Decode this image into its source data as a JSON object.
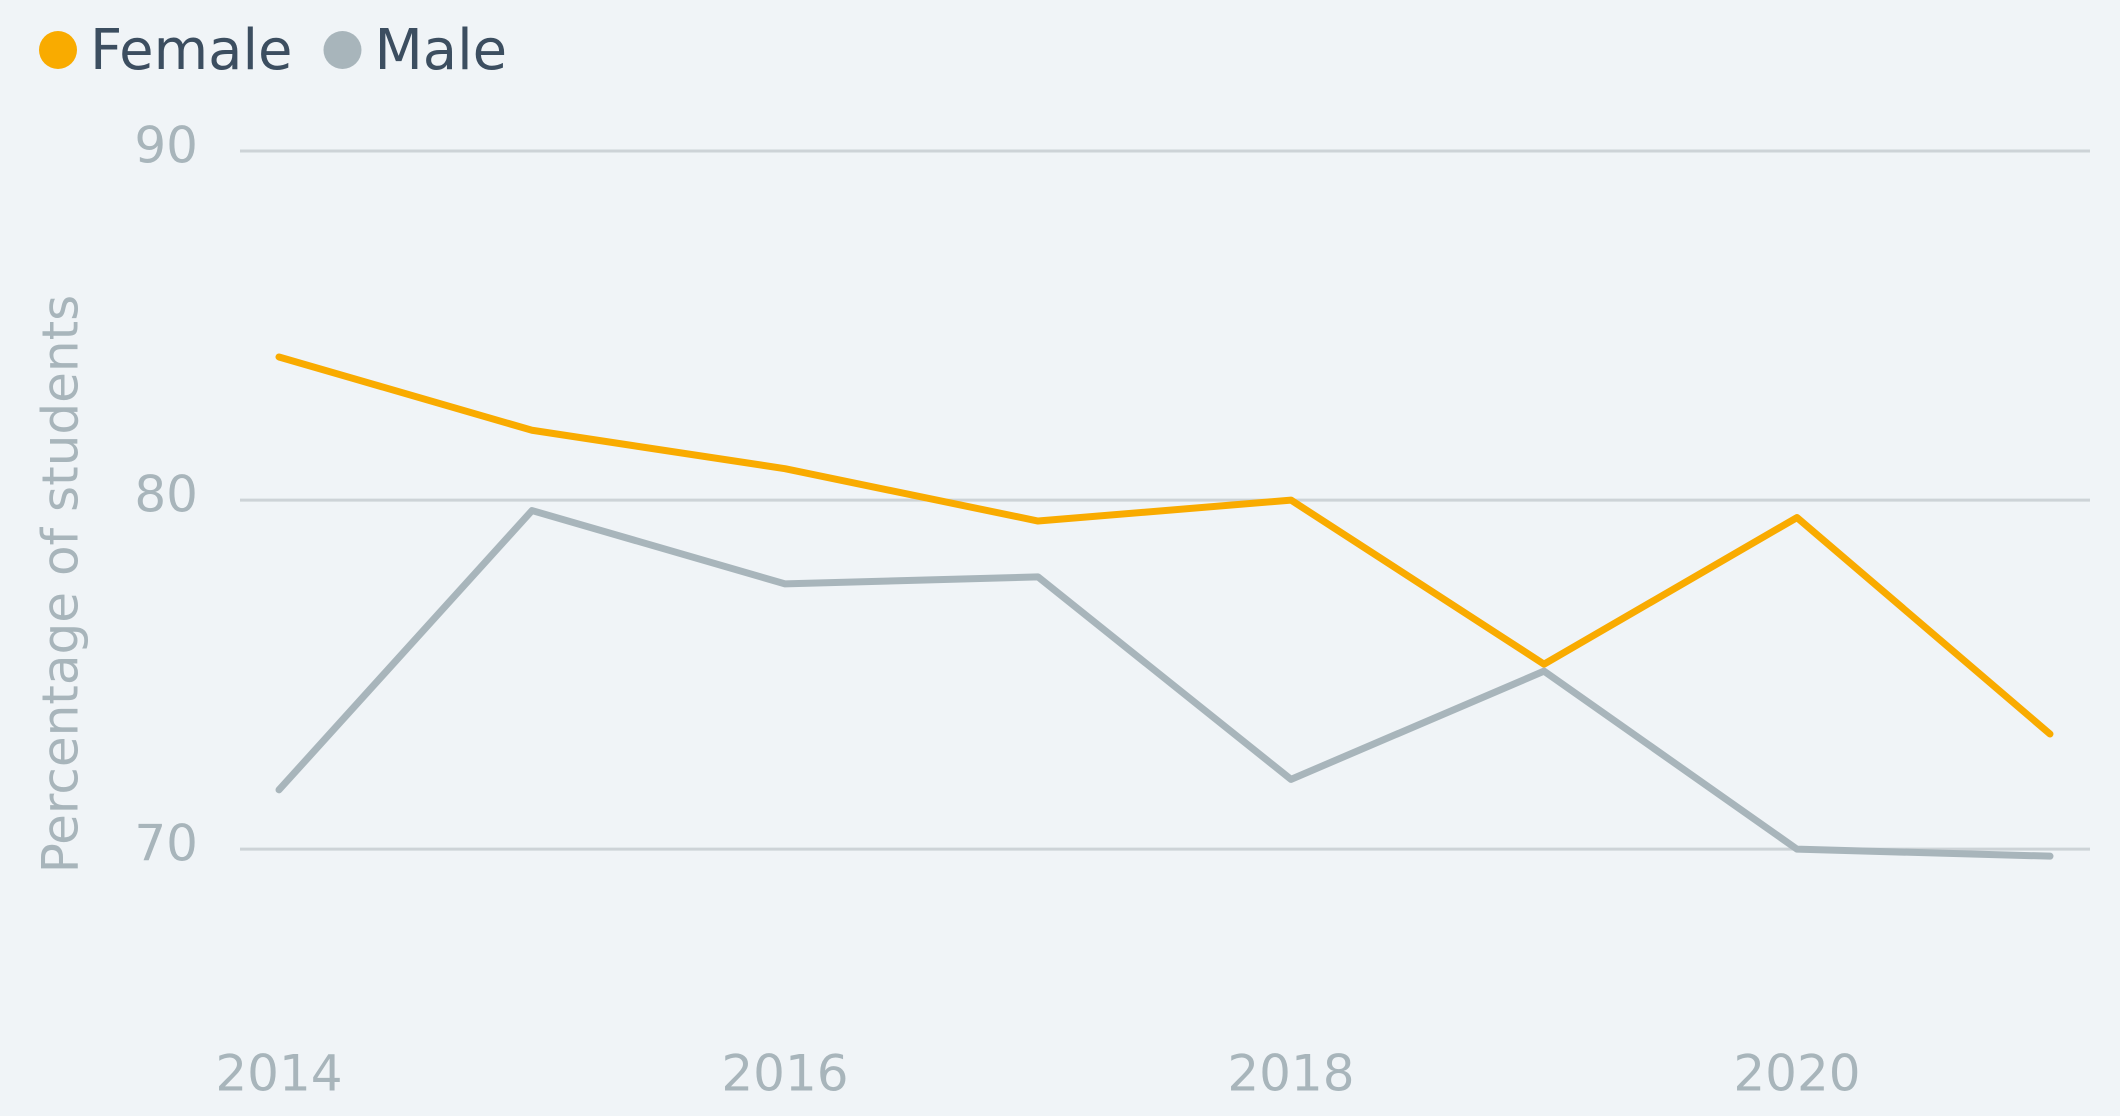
{
  "chart_data": {
    "type": "line",
    "y_label": "Percentage of students",
    "x": [
      2014,
      2015,
      2016,
      2017,
      2018,
      2019,
      2020,
      2021
    ],
    "series": [
      {
        "name": "Female",
        "color": "#f9ab00",
        "values": [
          84.1,
          82.0,
          80.9,
          79.4,
          80.0,
          75.3,
          79.5,
          73.3
        ]
      },
      {
        "name": "Male",
        "color": "#a8b5bb",
        "values": [
          71.7,
          79.7,
          77.6,
          77.8,
          72.0,
          75.1,
          70.0,
          69.8
        ]
      }
    ],
    "xlim": [
      2014,
      2021
    ],
    "xticks": [
      2014,
      2016,
      2018,
      2020
    ],
    "ylim": [
      68,
      90
    ],
    "yticks": [
      70,
      80,
      90
    ],
    "grid": true,
    "legend": "top-left"
  }
}
